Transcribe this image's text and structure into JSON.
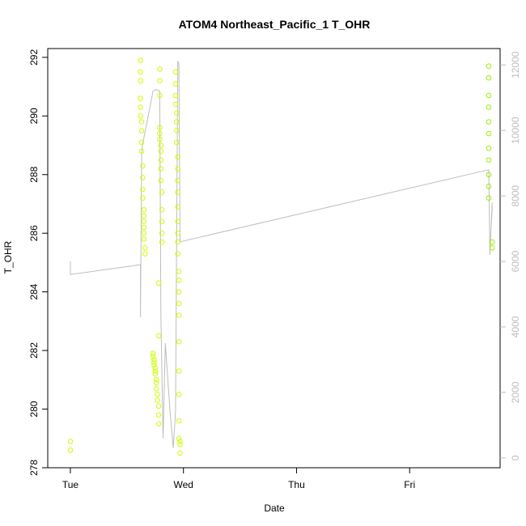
{
  "chart_data": {
    "type": "scatter",
    "title": "ATOM4 Northeast_Pacific_1 T_OHR",
    "xlabel": "Date",
    "ylabel": "T_OHR",
    "x_ticks": [
      "Tue",
      "Wed",
      "Thu",
      "Fri"
    ],
    "x_tick_positions_days": [
      0,
      1,
      2,
      3
    ],
    "xlim_days": [
      -0.2,
      3.8
    ],
    "ylim": [
      278,
      292.3
    ],
    "y_ticks": [
      278,
      280,
      282,
      284,
      286,
      288,
      290,
      292
    ],
    "y2lim": [
      -300,
      12500
    ],
    "y2_ticks": [
      0,
      2000,
      4000,
      6000,
      8000,
      10000,
      12000
    ],
    "grid": false,
    "point_color": "#ccff00",
    "point_color_fri": "#99ee00",
    "line_color": "#bdbdbd",
    "series": [
      {
        "axis": "left",
        "mark": "open-circle",
        "points": [
          [
            0.0,
            278.9
          ],
          [
            0.0,
            278.6
          ],
          [
            0.62,
            291.9
          ],
          [
            0.62,
            291.5
          ],
          [
            0.62,
            291.2
          ],
          [
            0.62,
            290.6
          ],
          [
            0.62,
            290.3
          ],
          [
            0.62,
            290.0
          ],
          [
            0.63,
            289.8
          ],
          [
            0.63,
            289.5
          ],
          [
            0.63,
            289.1
          ],
          [
            0.63,
            288.8
          ],
          [
            0.64,
            288.3
          ],
          [
            0.64,
            287.9
          ],
          [
            0.64,
            287.5
          ],
          [
            0.64,
            287.2
          ],
          [
            0.65,
            286.8
          ],
          [
            0.65,
            286.6
          ],
          [
            0.65,
            286.4
          ],
          [
            0.65,
            286.2
          ],
          [
            0.65,
            286.0
          ],
          [
            0.65,
            285.8
          ],
          [
            0.66,
            285.5
          ],
          [
            0.66,
            285.3
          ],
          [
            0.73,
            281.9
          ],
          [
            0.73,
            281.8
          ],
          [
            0.74,
            281.7
          ],
          [
            0.74,
            281.6
          ],
          [
            0.74,
            281.5
          ],
          [
            0.75,
            281.4
          ],
          [
            0.75,
            281.3
          ],
          [
            0.75,
            281.2
          ],
          [
            0.76,
            281.0
          ],
          [
            0.76,
            280.9
          ],
          [
            0.76,
            280.7
          ],
          [
            0.77,
            280.5
          ],
          [
            0.77,
            280.3
          ],
          [
            0.78,
            280.1
          ],
          [
            0.78,
            279.8
          ],
          [
            0.78,
            279.5
          ],
          [
            0.79,
            291.6
          ],
          [
            0.79,
            291.2
          ],
          [
            0.79,
            290.7
          ],
          [
            0.79,
            289.6
          ],
          [
            0.79,
            289.4
          ],
          [
            0.79,
            289.2
          ],
          [
            0.8,
            289.0
          ],
          [
            0.8,
            288.8
          ],
          [
            0.8,
            288.5
          ],
          [
            0.8,
            288.2
          ],
          [
            0.8,
            287.8
          ],
          [
            0.81,
            287.4
          ],
          [
            0.81,
            286.8
          ],
          [
            0.81,
            286.4
          ],
          [
            0.81,
            286.0
          ],
          [
            0.81,
            285.7
          ],
          [
            0.78,
            284.3
          ],
          [
            0.78,
            282.5
          ],
          [
            0.93,
            291.5
          ],
          [
            0.93,
            291.1
          ],
          [
            0.93,
            290.7
          ],
          [
            0.93,
            290.4
          ],
          [
            0.94,
            290.1
          ],
          [
            0.94,
            289.8
          ],
          [
            0.94,
            289.5
          ],
          [
            0.94,
            289.1
          ],
          [
            0.95,
            288.6
          ],
          [
            0.95,
            288.2
          ],
          [
            0.95,
            287.8
          ],
          [
            0.95,
            287.4
          ],
          [
            0.95,
            286.9
          ],
          [
            0.95,
            286.4
          ],
          [
            0.95,
            286.0
          ],
          [
            0.95,
            285.7
          ],
          [
            0.95,
            285.3
          ],
          [
            0.96,
            284.7
          ],
          [
            0.96,
            284.4
          ],
          [
            0.96,
            284.0
          ],
          [
            0.96,
            283.6
          ],
          [
            0.96,
            283.2
          ],
          [
            0.96,
            282.3
          ],
          [
            0.96,
            281.3
          ],
          [
            0.96,
            280.5
          ],
          [
            0.96,
            279.6
          ],
          [
            0.96,
            279.0
          ],
          [
            0.97,
            278.9
          ],
          [
            0.97,
            278.8
          ],
          [
            0.97,
            278.5
          ],
          [
            3.7,
            291.7
          ],
          [
            3.7,
            291.3
          ],
          [
            3.7,
            290.7
          ],
          [
            3.7,
            290.3
          ],
          [
            3.7,
            289.8
          ],
          [
            3.7,
            289.4
          ],
          [
            3.7,
            288.9
          ],
          [
            3.7,
            288.5
          ],
          [
            3.7,
            288.0
          ],
          [
            3.7,
            287.6
          ],
          [
            3.7,
            287.2
          ],
          [
            3.73,
            285.7
          ],
          [
            3.73,
            285.5
          ]
        ]
      },
      {
        "axis": "right",
        "mark": "line",
        "points": [
          [
            0.0,
            6000
          ],
          [
            0.0,
            5600
          ],
          [
            0.62,
            5900
          ],
          [
            0.62,
            4300
          ],
          [
            0.63,
            9300
          ],
          [
            0.64,
            9600
          ],
          [
            0.72,
            11000
          ],
          [
            0.73,
            11200
          ],
          [
            0.76,
            11250
          ],
          [
            0.79,
            11200
          ],
          [
            0.8,
            4400
          ],
          [
            0.82,
            600
          ],
          [
            0.84,
            3500
          ],
          [
            0.88,
            1500
          ],
          [
            0.91,
            300
          ],
          [
            0.93,
            1400
          ],
          [
            0.95,
            12100
          ],
          [
            0.96,
            12050
          ],
          [
            0.97,
            6600
          ],
          [
            3.7,
            8800
          ],
          [
            3.71,
            6200
          ],
          [
            3.73,
            7800
          ],
          [
            3.73,
            7600
          ],
          [
            3.72,
            7000
          ]
        ]
      }
    ]
  }
}
